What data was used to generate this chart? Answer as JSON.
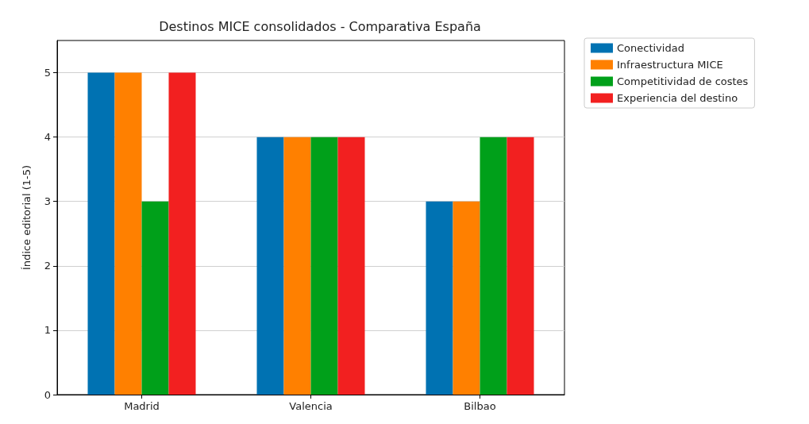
{
  "chart_data": {
    "type": "bar",
    "title": "Destinos MICE consolidados - Comparativa España",
    "ylabel": "Índice editorial (1-5)",
    "categories": [
      "Madrid",
      "Valencia",
      "Bilbao"
    ],
    "series": [
      {
        "name": "Conectividad",
        "color": "#0072b2",
        "values": [
          5,
          4,
          3
        ]
      },
      {
        "name": "Infraestructura MICE",
        "color": "#ff8000",
        "values": [
          5,
          4,
          3
        ]
      },
      {
        "name": "Competitividad de costes",
        "color": "#00a01a",
        "values": [
          3,
          4,
          4
        ]
      },
      {
        "name": "Experiencia del destino",
        "color": "#f22020",
        "values": [
          5,
          4,
          4
        ]
      }
    ],
    "ylim": [
      0,
      5.5
    ],
    "yticks": [
      0,
      1,
      2,
      3,
      4,
      5
    ],
    "grid": "y",
    "legend": "top right"
  }
}
